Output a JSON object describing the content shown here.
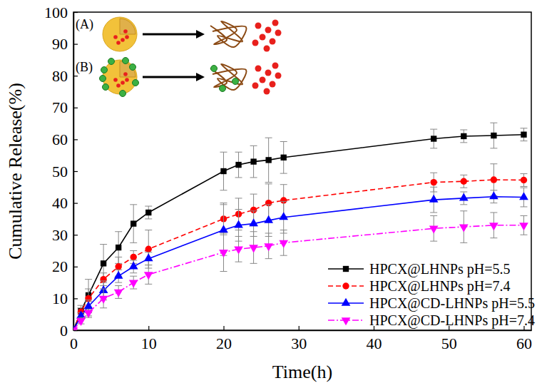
{
  "chart_data": {
    "type": "line",
    "x_label": "Time(h)",
    "y_label": "Cumulative Release(%)",
    "annotations": [
      "(A)",
      "(B)"
    ],
    "x": [
      0,
      1,
      2,
      4,
      6,
      8,
      10,
      20,
      22,
      24,
      26,
      28,
      48,
      52,
      56,
      60
    ],
    "xlim": [
      0,
      61
    ],
    "xticks": [
      0,
      10,
      20,
      30,
      40,
      50,
      60
    ],
    "ylim": [
      0,
      100
    ],
    "yticks": [
      0,
      10,
      20,
      30,
      40,
      50,
      60,
      70,
      80,
      90,
      100
    ],
    "legend": "lower right",
    "series": [
      {
        "name": "HPCX@LHNPs pH=5.5",
        "color": "#000000",
        "marker": "square",
        "line_style": "solid",
        "values": [
          0,
          6,
          11,
          21,
          26,
          33.5,
          37,
          50,
          52,
          53,
          53.5,
          54.3,
          60.2,
          61,
          61.2,
          61.5
        ],
        "errors": [
          0,
          1,
          2,
          6,
          5,
          6,
          2,
          6,
          4,
          5,
          7,
          5,
          3,
          2,
          4,
          2
        ]
      },
      {
        "name": "HPCX@LHNPs pH=7.4",
        "color": "#ff0000",
        "marker": "circle",
        "line_style": "dashed",
        "values": [
          0,
          5.8,
          10,
          16,
          20,
          23,
          25.5,
          35,
          36.5,
          37.8,
          40,
          40.8,
          46.5,
          46.8,
          47.3,
          47.2
        ],
        "errors": [
          0,
          2,
          6,
          2,
          3,
          2,
          6,
          5,
          5,
          5,
          6,
          5,
          3,
          2,
          5,
          2
        ]
      },
      {
        "name": "HPCX@CD-LHNPs pH=5.5",
        "color": "#0000ff",
        "marker": "triangle-up",
        "line_style": "solid",
        "values": [
          0,
          4.5,
          7.5,
          12.5,
          17,
          20,
          22.5,
          31.5,
          33,
          33.5,
          34.5,
          35.5,
          41,
          41.5,
          42,
          41.8
        ],
        "errors": [
          0,
          1,
          2,
          3,
          2,
          2,
          2,
          8,
          5,
          4,
          5,
          5,
          4,
          2,
          2,
          3
        ]
      },
      {
        "name": "HPCX@CD-LHNPs pH=7.4",
        "color": "#ff00ff",
        "marker": "triangle-down",
        "line_style": "dashdot",
        "values": [
          0,
          3,
          5.5,
          10,
          12,
          15,
          17.5,
          24.5,
          25.5,
          26,
          26.5,
          27.5,
          32,
          32.5,
          33,
          33
        ],
        "errors": [
          0,
          1,
          1,
          3,
          2,
          2,
          3,
          6,
          4,
          5,
          4,
          4,
          4,
          5,
          4,
          3
        ]
      }
    ]
  }
}
